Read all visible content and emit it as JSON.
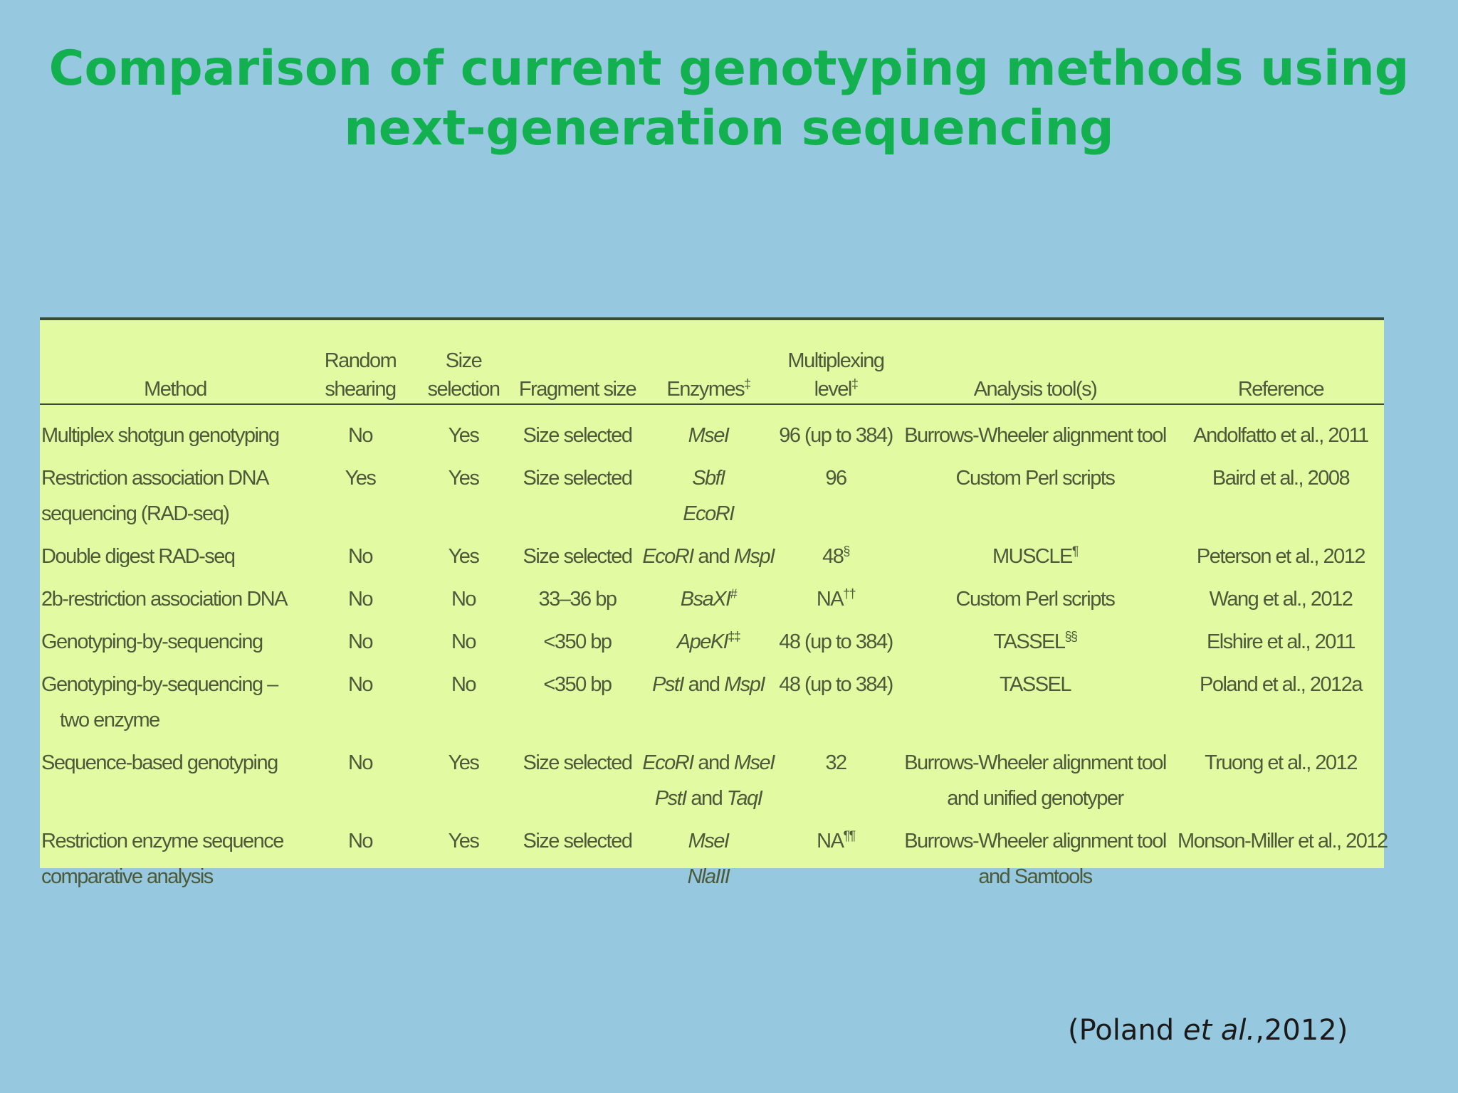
{
  "title": {
    "line1": "Comparison of current genotyping methods using",
    "line2": "next-generation sequencing"
  },
  "table": {
    "headers": {
      "method": "Method",
      "random_shearing": [
        "Random",
        "shearing"
      ],
      "size_selection": [
        "Size",
        "selection"
      ],
      "fragment_size": "Fragment size",
      "enzymes": "Enzymes",
      "enzymes_mark": "‡",
      "multiplexing": [
        "Multiplexing",
        "level"
      ],
      "multiplexing_mark": "‡",
      "analysis_tools": "Analysis tool(s)",
      "reference": "Reference"
    },
    "rows": [
      {
        "method": [
          "Multiplex shotgun genotyping"
        ],
        "random_shearing": "No",
        "size_selection": "Yes",
        "fragment_size": "Size selected",
        "enzymes": [
          {
            "parts": [
              {
                "t": "MseI",
                "i": true
              }
            ]
          }
        ],
        "multiplexing": "96 (up to 384)",
        "multiplexing_mark": "",
        "analysis": [
          "Burrows-Wheeler alignment tool"
        ],
        "analysis_mark": "",
        "reference": "Andolfatto et al., 2011"
      },
      {
        "method": [
          "Restriction association DNA",
          "sequencing (RAD-seq)"
        ],
        "random_shearing": "Yes",
        "size_selection": "Yes",
        "fragment_size": "Size selected",
        "enzymes": [
          {
            "parts": [
              {
                "t": "SbfI",
                "i": true
              }
            ]
          },
          {
            "parts": [
              {
                "t": "EcoRI",
                "i": true
              }
            ]
          }
        ],
        "multiplexing": "96",
        "multiplexing_mark": "",
        "analysis": [
          "Custom Perl scripts"
        ],
        "analysis_mark": "",
        "reference": "Baird et al., 2008"
      },
      {
        "method": [
          "Double digest RAD-seq"
        ],
        "random_shearing": "No",
        "size_selection": "Yes",
        "fragment_size": "Size selected",
        "enzymes": [
          {
            "parts": [
              {
                "t": "EcoRI",
                "i": true
              },
              {
                "t": " and ",
                "i": false
              },
              {
                "t": "MspI",
                "i": true
              }
            ]
          }
        ],
        "multiplexing": "48",
        "multiplexing_mark": "§",
        "analysis": [
          "MUSCLE"
        ],
        "analysis_mark": "¶",
        "reference": "Peterson et al., 2012"
      },
      {
        "method": [
          "2b-restriction association DNA"
        ],
        "random_shearing": "No",
        "size_selection": "No",
        "fragment_size": "33–36 bp",
        "enzymes": [
          {
            "parts": [
              {
                "t": "BsaXI",
                "i": true
              }
            ],
            "mark": "#"
          }
        ],
        "multiplexing": "NA",
        "multiplexing_mark": "††",
        "analysis": [
          "Custom Perl scripts"
        ],
        "analysis_mark": "",
        "reference": "Wang et al., 2012"
      },
      {
        "method": [
          "Genotyping-by-sequencing"
        ],
        "random_shearing": "No",
        "size_selection": "No",
        "fragment_size": "<350 bp",
        "enzymes": [
          {
            "parts": [
              {
                "t": "ApeKI",
                "i": true
              }
            ],
            "mark": "‡‡"
          }
        ],
        "multiplexing": "48 (up to 384)",
        "multiplexing_mark": "",
        "analysis": [
          "TASSEL"
        ],
        "analysis_mark": "§§",
        "reference": "Elshire et al., 2011"
      },
      {
        "method": [
          "Genotyping-by-sequencing –",
          "two enzyme"
        ],
        "random_shearing": "No",
        "size_selection": "No",
        "fragment_size": "<350 bp",
        "enzymes": [
          {
            "parts": [
              {
                "t": "PstI",
                "i": true
              },
              {
                "t": " and ",
                "i": false
              },
              {
                "t": "MspI",
                "i": true
              }
            ]
          }
        ],
        "multiplexing": "48 (up to 384)",
        "multiplexing_mark": "",
        "analysis": [
          "TASSEL"
        ],
        "analysis_mark": "",
        "reference": "Poland et al., 2012a"
      },
      {
        "method": [
          "Sequence-based genotyping"
        ],
        "random_shearing": "No",
        "size_selection": "Yes",
        "fragment_size": "Size selected",
        "enzymes": [
          {
            "parts": [
              {
                "t": "EcoRI",
                "i": true
              },
              {
                "t": " and ",
                "i": false
              },
              {
                "t": "MseI",
                "i": true
              }
            ]
          },
          {
            "parts": [
              {
                "t": "PstI",
                "i": true
              },
              {
                "t": " and ",
                "i": false
              },
              {
                "t": "TaqI",
                "i": true
              }
            ]
          }
        ],
        "multiplexing": "32",
        "multiplexing_mark": "",
        "analysis": [
          "Burrows-Wheeler alignment tool",
          "and unified genotyper"
        ],
        "analysis_mark": "",
        "reference": "Truong et al., 2012"
      },
      {
        "method": [
          "Restriction enzyme sequence",
          "comparative analysis"
        ],
        "random_shearing": "No",
        "size_selection": "Yes",
        "fragment_size": "Size selected",
        "enzymes": [
          {
            "parts": [
              {
                "t": "MseI",
                "i": true
              }
            ]
          },
          {
            "parts": [
              {
                "t": "NlaIII",
                "i": true
              }
            ]
          }
        ],
        "multiplexing": "NA",
        "multiplexing_mark": "¶¶",
        "analysis": [
          "Burrows-Wheeler alignment tool",
          "and Samtools"
        ],
        "analysis_mark": "",
        "reference": "Monson-Miller et al., 2012"
      }
    ]
  },
  "citation": {
    "open": "(Poland ",
    "etal": "et al.",
    "close": ",2012)"
  },
  "colors": {
    "background": "#96c9df",
    "title": "#12b04f",
    "table_bg": "#e2fba3",
    "table_text": "#4c5a3a"
  }
}
